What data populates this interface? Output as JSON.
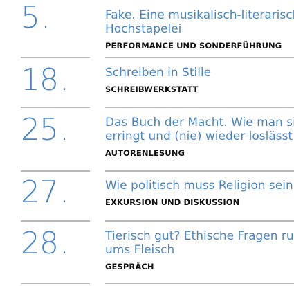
{
  "events": [
    {
      "date": "5",
      "title": "Fake. Eine musikalisch-literarische Hochstapelei",
      "type": "PERFORMANCE UND SONDERFÜHRUNG"
    },
    {
      "date": "18",
      "title": "Schreiben in Stille",
      "type": "SCHREIBWERKSTATT"
    },
    {
      "date": "25",
      "title": "Das Buch der Macht. Wie man sie erringt und (nie) wieder loslässt",
      "type": "AUTORENLESUNG"
    },
    {
      "date": "27",
      "title": "Wie politisch muss Religion sein?",
      "type": "EXKURSION UND DISKUSSION"
    },
    {
      "date": "28",
      "title": "Tierisch gut? Ethische Fragen rund ums Fleisch",
      "type": "GESPRÄCH"
    }
  ],
  "date_suffix": ".",
  "colors": {
    "accent": "#4a86c5",
    "type_text": "#111111",
    "rule": "#b8b8b8"
  }
}
